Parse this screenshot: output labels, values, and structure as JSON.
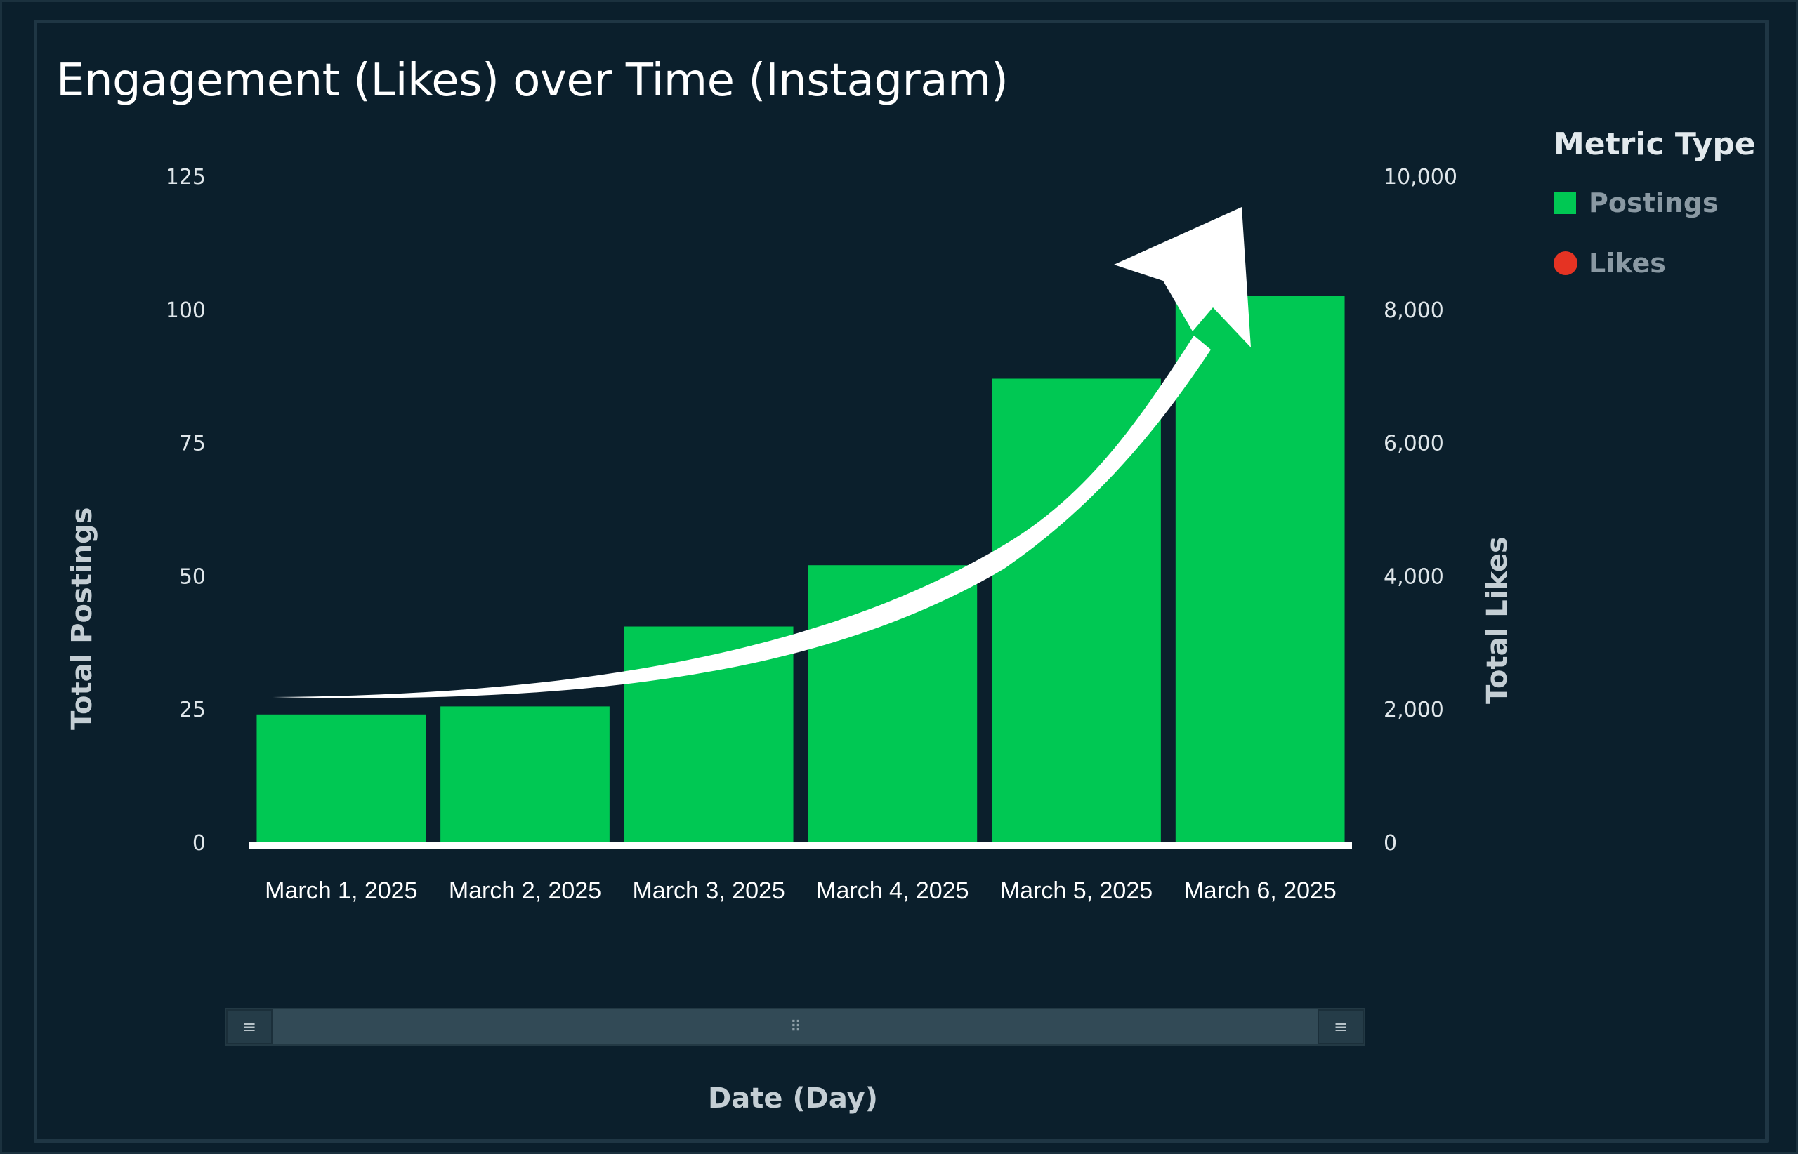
{
  "chart_data": {
    "type": "bar",
    "title": "Engagement (Likes) over Time (Instagram)",
    "xlabel": "Date (Day)",
    "ylabel": "Total Postings",
    "y2label": "Total Likes",
    "categories": [
      "March 1, 2025",
      "March 2, 2025",
      "March 3, 2025",
      "March 4, 2025",
      "March 5, 2025",
      "March 6, 2025"
    ],
    "series": [
      {
        "name": "Postings",
        "values": [
          24,
          25.5,
          40.5,
          52,
          87,
          102.5
        ],
        "color": "#00c853"
      }
    ],
    "ylim": [
      0,
      125
    ],
    "y_ticks": [
      "0",
      "25",
      "50",
      "75",
      "100",
      "125"
    ],
    "y2lim": [
      0,
      10000
    ],
    "y2_ticks": [
      "0",
      "2,000",
      "4,000",
      "6,000",
      "8,000",
      "10,000"
    ],
    "legend": {
      "title": "Metric Type",
      "position": "right",
      "items": [
        {
          "label": "Postings",
          "color": "#00c853",
          "shape": "square"
        },
        {
          "label": "Likes",
          "color": "#e53323",
          "shape": "circle"
        }
      ]
    },
    "annotation": {
      "shape": "arrow-curve-up",
      "color": "#ffffff"
    }
  },
  "scrollbar": {
    "left_handle": "≡",
    "right_handle": "≡",
    "grip": "⠿"
  }
}
